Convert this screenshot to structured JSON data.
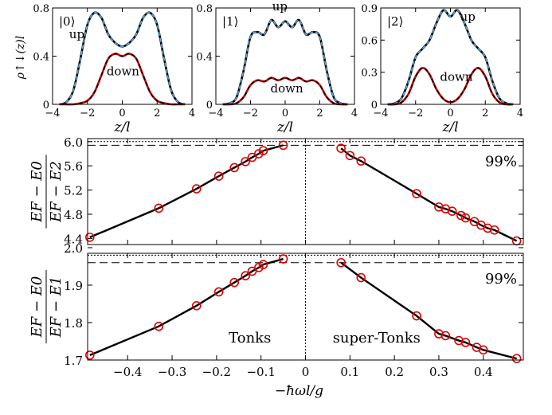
{
  "chart_data": [
    {
      "type": "line",
      "panel_label": "|0⟩",
      "ylabel": "ρ↑↓(z)l",
      "xlabel": "z/l",
      "xlim": [
        -4,
        4
      ],
      "ylim": [
        0,
        0.8
      ],
      "xticks": [
        -4,
        -2,
        0,
        2,
        4
      ],
      "yticks": [
        0,
        0.4,
        0.8
      ],
      "annotations": [
        "up",
        "down"
      ],
      "series": [
        {
          "name": "up",
          "color": "#000000",
          "dashed_color": "#5aa9e6",
          "x": [
            -3.6,
            -3.2,
            -2.8,
            -2.4,
            -2.0,
            -1.6,
            -1.2,
            -0.8,
            -0.4,
            0.0,
            0.4,
            0.8,
            1.2,
            1.6,
            2.0,
            2.4,
            2.8,
            3.2,
            3.6
          ],
          "y": [
            0.0,
            0.02,
            0.12,
            0.38,
            0.66,
            0.76,
            0.72,
            0.58,
            0.51,
            0.48,
            0.51,
            0.58,
            0.72,
            0.76,
            0.66,
            0.38,
            0.12,
            0.02,
            0.0
          ]
        },
        {
          "name": "down",
          "color": "#cc0000",
          "dashed_color": "#000000",
          "x": [
            -3.6,
            -3.2,
            -2.8,
            -2.4,
            -2.0,
            -1.6,
            -1.2,
            -0.8,
            -0.4,
            0.0,
            0.4,
            0.8,
            1.2,
            1.6,
            2.0,
            2.4,
            2.8,
            3.2,
            3.6
          ],
          "y": [
            0.0,
            0.0,
            0.0,
            0.01,
            0.03,
            0.1,
            0.24,
            0.38,
            0.42,
            0.4,
            0.42,
            0.38,
            0.24,
            0.1,
            0.03,
            0.01,
            0.0,
            0.0,
            0.0
          ]
        }
      ]
    },
    {
      "type": "line",
      "panel_label": "|1⟩",
      "xlabel": "z/l",
      "xlim": [
        -4,
        4
      ],
      "ylim": [
        0,
        0.8
      ],
      "xticks": [
        -4,
        -2,
        0,
        2,
        4
      ],
      "yticks": [
        0,
        0.4,
        0.8
      ],
      "annotations": [
        "up",
        "down"
      ],
      "series": [
        {
          "name": "up",
          "color": "#000000",
          "dashed_color": "#5aa9e6",
          "x": [
            -3.6,
            -3.2,
            -2.8,
            -2.4,
            -2.0,
            -1.6,
            -1.2,
            -0.8,
            -0.4,
            0.0,
            0.4,
            0.8,
            1.2,
            1.6,
            2.0,
            2.4,
            2.8,
            3.2,
            3.6
          ],
          "y": [
            0.0,
            0.01,
            0.06,
            0.28,
            0.56,
            0.6,
            0.58,
            0.7,
            0.64,
            0.69,
            0.64,
            0.7,
            0.58,
            0.6,
            0.56,
            0.28,
            0.06,
            0.01,
            0.0
          ]
        },
        {
          "name": "down",
          "color": "#cc0000",
          "dashed_color": "#000000",
          "x": [
            -3.6,
            -3.2,
            -2.8,
            -2.4,
            -2.0,
            -1.6,
            -1.2,
            -0.8,
            -0.4,
            0.0,
            0.4,
            0.8,
            1.2,
            1.6,
            2.0,
            2.4,
            2.8,
            3.2,
            3.6
          ],
          "y": [
            0.0,
            0.0,
            0.01,
            0.06,
            0.16,
            0.2,
            0.19,
            0.22,
            0.2,
            0.22,
            0.2,
            0.22,
            0.19,
            0.2,
            0.16,
            0.06,
            0.01,
            0.0,
            0.0
          ]
        }
      ]
    },
    {
      "type": "line",
      "panel_label": "|2⟩",
      "xlabel": "z/l",
      "xlim": [
        -4,
        4
      ],
      "ylim": [
        0,
        0.9
      ],
      "xticks": [
        -4,
        -2,
        0,
        2,
        4
      ],
      "yticks": [
        0,
        0.3,
        0.6,
        0.9
      ],
      "annotations": [
        "up",
        "down"
      ],
      "series": [
        {
          "name": "up",
          "color": "#000000",
          "dashed_color": "#5aa9e6",
          "x": [
            -3.6,
            -3.2,
            -2.8,
            -2.4,
            -2.0,
            -1.6,
            -1.2,
            -0.8,
            -0.4,
            0.0,
            0.4,
            0.8,
            1.2,
            1.6,
            2.0,
            2.4,
            2.8,
            3.2,
            3.6
          ],
          "y": [
            0.0,
            0.01,
            0.06,
            0.22,
            0.44,
            0.52,
            0.6,
            0.76,
            0.88,
            0.82,
            0.88,
            0.76,
            0.6,
            0.52,
            0.44,
            0.22,
            0.06,
            0.01,
            0.0
          ]
        },
        {
          "name": "down",
          "color": "#cc0000",
          "dashed_color": "#000000",
          "x": [
            -3.6,
            -3.2,
            -2.8,
            -2.4,
            -2.0,
            -1.6,
            -1.2,
            -0.8,
            -0.4,
            0.0,
            0.4,
            0.8,
            1.2,
            1.6,
            2.0,
            2.4,
            2.8,
            3.2,
            3.6
          ],
          "y": [
            0.0,
            0.0,
            0.02,
            0.1,
            0.26,
            0.34,
            0.28,
            0.14,
            0.05,
            0.02,
            0.05,
            0.14,
            0.28,
            0.34,
            0.26,
            0.1,
            0.02,
            0.0,
            0.0
          ]
        }
      ]
    },
    {
      "type": "scatter",
      "ylabel_num": "E_F − E_0",
      "ylabel_den": "E_F − E_2",
      "xlim": [
        -0.49,
        0.49
      ],
      "ylim": [
        4.3,
        6.05
      ],
      "yticks": [
        4.4,
        4.8,
        5.2,
        5.6,
        6.0
      ],
      "yticklabels": [
        "4.4",
        "4.8",
        "5.2",
        "5.6",
        "6.0"
      ],
      "hline_dotted": 6.0,
      "hline_dashed": 5.94,
      "annotation": "99%",
      "marker_color": "#dd0000",
      "series": [
        {
          "name": "left",
          "x": [
            -0.485,
            -0.33,
            -0.245,
            -0.195,
            -0.16,
            -0.135,
            -0.12,
            -0.105,
            -0.095,
            -0.05
          ],
          "y": [
            4.42,
            4.9,
            5.22,
            5.43,
            5.57,
            5.67,
            5.74,
            5.8,
            5.85,
            5.94
          ]
        },
        {
          "name": "right",
          "x": [
            0.08,
            0.1,
            0.125,
            0.25,
            0.3,
            0.315,
            0.33,
            0.35,
            0.36,
            0.38,
            0.395,
            0.41,
            0.425,
            0.475
          ],
          "y": [
            5.89,
            5.77,
            5.68,
            5.14,
            4.92,
            4.89,
            4.85,
            4.78,
            4.74,
            4.68,
            4.62,
            4.57,
            4.54,
            4.36
          ]
        }
      ]
    },
    {
      "type": "scatter",
      "ylabel_num": "E_F − E_0",
      "ylabel_den": "E_F − E_1",
      "xlabel": "−ħωl/g",
      "xlim": [
        -0.49,
        0.49
      ],
      "ylim": [
        1.7,
        1.985
      ],
      "xticks": [
        -0.4,
        -0.3,
        -0.2,
        -0.1,
        0,
        0.1,
        0.2,
        0.3,
        0.4
      ],
      "xticklabels": [
        "−0.4",
        "−0.3",
        "−0.2",
        "−0.1",
        "0",
        "0.1",
        "0.2",
        "0.3",
        "0.4"
      ],
      "yticks": [
        1.7,
        1.8,
        1.9,
        2.0
      ],
      "yticklabels": [
        "1.7",
        "1.8",
        "1.9",
        "2.0"
      ],
      "hline_dotted": 1.98,
      "hline_dashed": 1.96,
      "annotation": "99%",
      "region_labels": [
        "Tonks",
        "super-Tonks"
      ],
      "marker_color": "#dd0000",
      "series": [
        {
          "name": "left",
          "x": [
            -0.485,
            -0.33,
            -0.245,
            -0.195,
            -0.16,
            -0.135,
            -0.12,
            -0.105,
            -0.095,
            -0.05
          ],
          "y": [
            1.713,
            1.79,
            1.845,
            1.882,
            1.907,
            1.925,
            1.937,
            1.947,
            1.955,
            1.97
          ]
        },
        {
          "name": "right",
          "x": [
            0.08,
            0.125,
            0.25,
            0.3,
            0.315,
            0.345,
            0.36,
            0.385,
            0.4,
            0.475
          ],
          "y": [
            1.96,
            1.92,
            1.818,
            1.77,
            1.765,
            1.752,
            1.747,
            1.734,
            1.727,
            1.704
          ]
        }
      ]
    }
  ]
}
